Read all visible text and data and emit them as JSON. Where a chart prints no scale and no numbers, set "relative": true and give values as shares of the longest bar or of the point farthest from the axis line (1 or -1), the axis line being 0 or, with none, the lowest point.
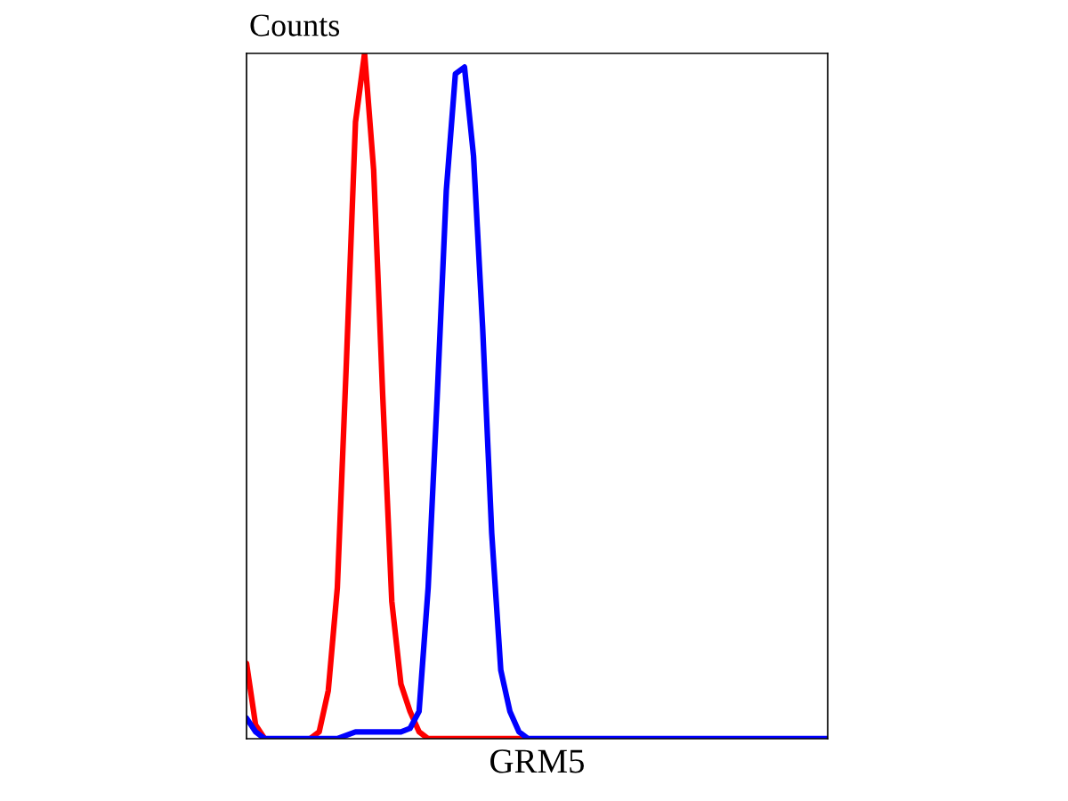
{
  "chart_data": {
    "type": "line",
    "relative": true,
    "ylabel": "Counts",
    "xlabel": "GRM5",
    "marker": "none",
    "line_style": "solid",
    "categories": [
      null,
      null,
      null,
      null,
      null,
      null,
      null,
      null,
      null,
      null,
      null,
      null,
      null,
      null,
      null,
      null,
      null,
      null,
      null,
      null,
      null,
      null,
      null,
      null,
      null,
      null,
      null,
      null,
      null,
      null,
      null,
      null,
      null,
      null,
      null,
      null,
      null,
      null,
      null,
      null,
      null,
      null,
      null,
      null,
      null,
      null,
      null,
      null,
      null,
      null,
      null,
      null,
      null,
      null,
      null,
      null,
      null,
      null,
      null,
      null,
      null,
      null,
      null,
      null,
      null
    ],
    "series": [
      {
        "color": "#ff0000",
        "values": [
          0.11,
          0.02,
          0,
          null,
          null,
          null,
          null,
          0,
          0.01,
          0.07,
          0.22,
          0.55,
          0.9,
          1.0,
          0.83,
          0.5,
          0.2,
          0.08,
          0.04,
          0.01,
          0,
          0,
          0,
          0,
          0,
          0,
          0,
          0,
          0,
          0,
          0,
          0,
          null,
          null,
          null,
          null,
          null,
          null,
          null,
          null,
          null,
          null,
          null,
          null,
          null,
          null,
          null,
          null,
          null,
          null,
          null,
          null,
          null,
          null,
          null,
          null,
          null,
          null,
          null,
          null,
          null,
          null,
          null,
          null,
          null
        ]
      },
      {
        "color": "#0000ff",
        "values": [
          0.03,
          0.01,
          0,
          0,
          0,
          0,
          0,
          0,
          0,
          0,
          0,
          0.005,
          0.01,
          0.01,
          0.01,
          0.01,
          0.01,
          0.01,
          0.015,
          0.04,
          0.22,
          0.5,
          0.8,
          0.97,
          0.98,
          0.85,
          0.6,
          0.3,
          0.1,
          0.04,
          0.01,
          0,
          0,
          0,
          0,
          0,
          0,
          0,
          0,
          0,
          0,
          0,
          0,
          0,
          0,
          0,
          0,
          0,
          0,
          0,
          0,
          0,
          0,
          0,
          0,
          0,
          0,
          0,
          0,
          0,
          0,
          0,
          0,
          0,
          0
        ]
      }
    ]
  }
}
